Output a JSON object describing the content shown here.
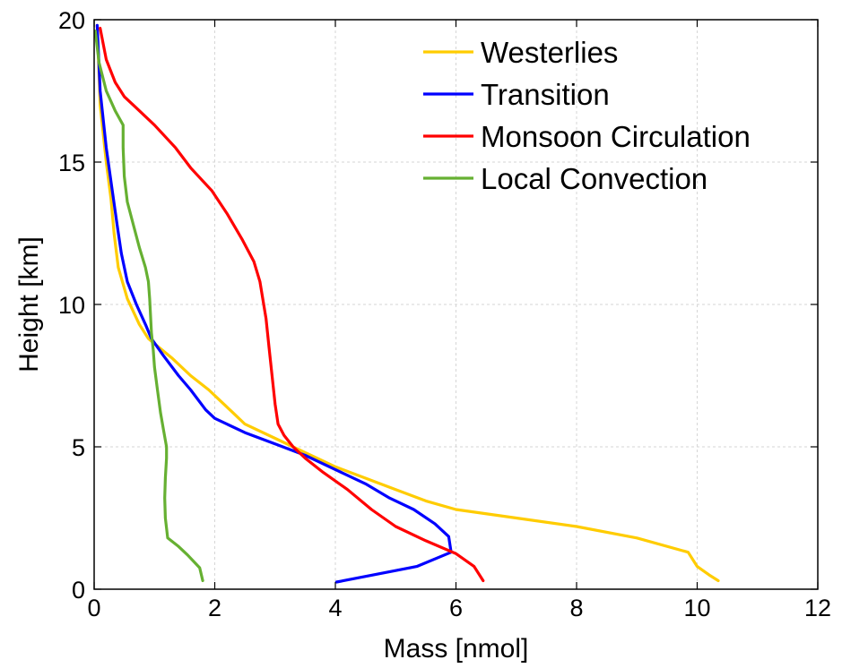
{
  "chart_data": {
    "type": "line",
    "xlabel": "Mass [nmol]",
    "ylabel": "Height [km]",
    "xlim": [
      0,
      12
    ],
    "ylim": [
      0,
      20
    ],
    "xticks": [
      0,
      2,
      4,
      6,
      8,
      10,
      12
    ],
    "yticks": [
      0,
      5,
      10,
      15,
      20
    ],
    "grid": true,
    "legend_position": "top-right",
    "series": [
      {
        "name": "Westerlies",
        "color": "#FFCC00",
        "x": [
          10.35,
          10.2,
          10.0,
          9.85,
          9.0,
          8.0,
          7.0,
          6.0,
          5.5,
          5.0,
          4.5,
          4.0,
          3.5,
          3.0,
          2.5,
          2.3,
          2.1,
          1.9,
          1.6,
          1.3,
          0.9,
          0.75,
          0.55,
          0.4,
          0.33,
          0.28,
          0.2,
          0.1,
          0.05
        ],
        "y": [
          0.3,
          0.5,
          0.8,
          1.3,
          1.8,
          2.2,
          2.5,
          2.8,
          3.1,
          3.5,
          3.9,
          4.3,
          4.8,
          5.3,
          5.8,
          6.2,
          6.6,
          7.0,
          7.5,
          8.1,
          8.8,
          9.3,
          10.2,
          11.3,
          12.5,
          13.7,
          15.0,
          17.0,
          19.8
        ]
      },
      {
        "name": "Transition",
        "color": "#0000FF",
        "x": [
          4.02,
          5.35,
          5.92,
          5.88,
          5.65,
          5.3,
          4.9,
          4.5,
          4.0,
          3.5,
          3.0,
          2.5,
          2.2,
          2.0,
          1.85,
          1.6,
          1.4,
          1.15,
          0.95,
          0.85,
          0.7,
          0.55,
          0.45,
          0.38,
          0.3,
          0.2,
          0.1,
          0.05
        ],
        "y": [
          0.25,
          0.8,
          1.3,
          1.85,
          2.3,
          2.8,
          3.2,
          3.7,
          4.2,
          4.7,
          5.1,
          5.5,
          5.8,
          6.0,
          6.3,
          7.0,
          7.5,
          8.2,
          8.8,
          9.3,
          10.0,
          10.8,
          11.8,
          12.8,
          14.0,
          15.5,
          17.5,
          19.8
        ]
      },
      {
        "name": "Monsoon Circulation",
        "color": "#FF0000",
        "x": [
          6.45,
          6.3,
          6.0,
          5.5,
          5.0,
          4.6,
          4.2,
          3.8,
          3.5,
          3.3,
          3.15,
          3.05,
          3.0,
          2.95,
          2.9,
          2.85,
          2.75,
          2.65,
          2.45,
          2.2,
          1.95,
          1.6,
          1.35,
          1.0,
          0.7,
          0.5,
          0.35,
          0.2,
          0.1
        ],
        "y": [
          0.3,
          0.8,
          1.25,
          1.7,
          2.2,
          2.8,
          3.5,
          4.1,
          4.6,
          5.0,
          5.4,
          5.8,
          6.5,
          7.5,
          8.5,
          9.5,
          10.8,
          11.5,
          12.3,
          13.2,
          14.0,
          14.8,
          15.5,
          16.3,
          16.9,
          17.3,
          17.8,
          18.6,
          19.7
        ]
      },
      {
        "name": "Local Convection",
        "color": "#66B032",
        "x": [
          1.8,
          1.75,
          1.55,
          1.4,
          1.22,
          1.18,
          1.17,
          1.18,
          1.2,
          1.2,
          1.15,
          1.1,
          1.05,
          1.0,
          0.98,
          0.95,
          0.92,
          0.9,
          0.85,
          0.75,
          0.65,
          0.55,
          0.5,
          0.48,
          0.48,
          0.35,
          0.2,
          0.08,
          0.02
        ],
        "y": [
          0.3,
          0.75,
          1.2,
          1.5,
          1.8,
          2.5,
          3.2,
          3.9,
          4.6,
          5.0,
          5.6,
          6.2,
          7.0,
          7.8,
          8.4,
          9.0,
          10.2,
          10.8,
          11.3,
          12.0,
          12.8,
          13.6,
          14.5,
          15.5,
          16.3,
          16.8,
          17.5,
          18.5,
          19.6
        ]
      }
    ]
  }
}
